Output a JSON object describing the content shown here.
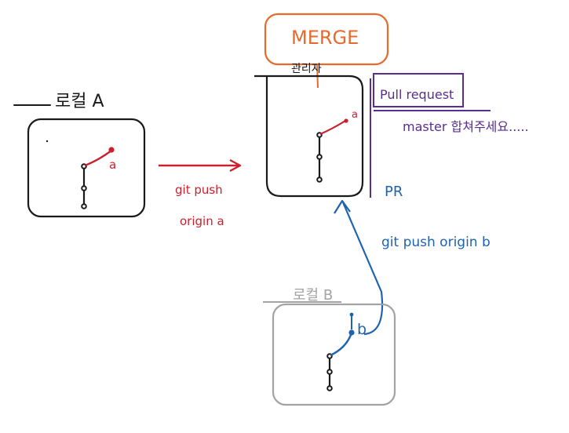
{
  "labels": {
    "local_a": "로컬 A",
    "commit_a": "a",
    "push_a_line1": "git push",
    "push_a_line2": "origin a",
    "merge": "MERGE",
    "owner": "관리자",
    "pull_request": "Pull request",
    "master_note": "master 합쳐주세요.....",
    "commit_remote_a": "a",
    "pr": "PR",
    "push_b": "git push origin b",
    "local_b": "로컬 B",
    "commit_b": "b"
  },
  "colors": {
    "black": "#1a1a1a",
    "red": "#cc1f2b",
    "orange": "#e8692c",
    "purple": "#5a2d91",
    "blue": "#1f63b0",
    "gray": "#a3a3a3"
  }
}
